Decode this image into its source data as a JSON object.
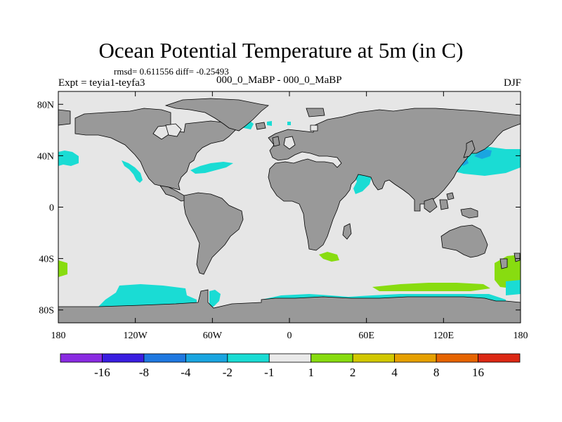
{
  "title": "Ocean Potential Temperature at 5m (in C)",
  "stats": "rmsd= 0.611556 diff= -0.25493",
  "expt": "Expt = teyia1-teyfa3",
  "experiment_names": "000_0_MaBP - 000_0_MaBP",
  "season": "DJF",
  "map": {
    "lon_range": [
      -180,
      180
    ],
    "lat_range": [
      -90,
      90
    ],
    "lon_ticks": [
      {
        "value": -180,
        "label": "180"
      },
      {
        "value": -120,
        "label": "120W"
      },
      {
        "value": -60,
        "label": "60W"
      },
      {
        "value": 0,
        "label": "0"
      },
      {
        "value": 60,
        "label": "60E"
      },
      {
        "value": 120,
        "label": "120E"
      },
      {
        "value": 180,
        "label": "180"
      }
    ],
    "lat_ticks": [
      {
        "value": 80,
        "label": "80N"
      },
      {
        "value": 40,
        "label": "40N"
      },
      {
        "value": 0,
        "label": "0"
      },
      {
        "value": -40,
        "label": "40S"
      },
      {
        "value": -80,
        "label": "80S"
      }
    ],
    "ocean_color": "#e6e6e6",
    "land_color": "#999999"
  },
  "colorbar": {
    "colors": [
      "#8a2be2",
      "#3a1ee0",
      "#1f78e0",
      "#1aa5e0",
      "#1adcd4",
      "#eaeaea",
      "#88dc10",
      "#d2c800",
      "#e6a000",
      "#e66400",
      "#dc2814"
    ],
    "labels": [
      "-16",
      "-8",
      "-4",
      "-2",
      "-1",
      "1",
      "2",
      "4",
      "8",
      "16"
    ]
  }
}
